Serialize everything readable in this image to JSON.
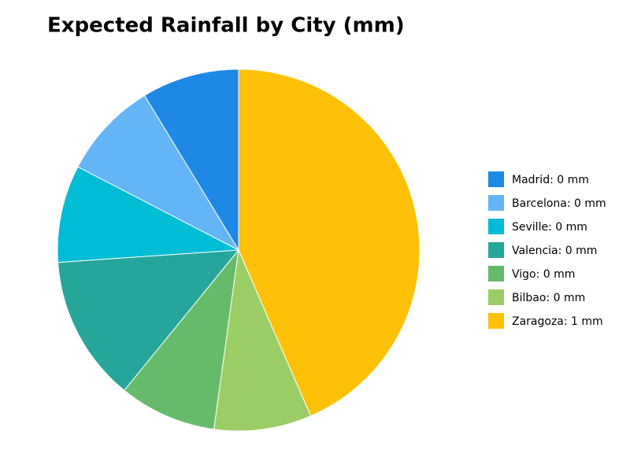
{
  "chart_data": {
    "type": "pie",
    "title": "Expected Rainfall by City (mm)",
    "value_labels": [
      "Madrid: 0 mm",
      "Barcelona: 0 mm",
      "Seville: 0 mm",
      "Valencia: 0 mm",
      "Vigo: 0 mm",
      "Bilbao: 0 mm",
      "Zaragoza: 1 mm"
    ],
    "values": [
      0.2,
      0.2,
      0.2,
      0.3,
      0.2,
      0.2,
      1.0
    ],
    "colors": [
      "#1e88e5",
      "#64b5f6",
      "#00bcd4",
      "#26a69a",
      "#66bb6a",
      "#9ccc65",
      "#ffc107"
    ],
    "legend": "right"
  }
}
